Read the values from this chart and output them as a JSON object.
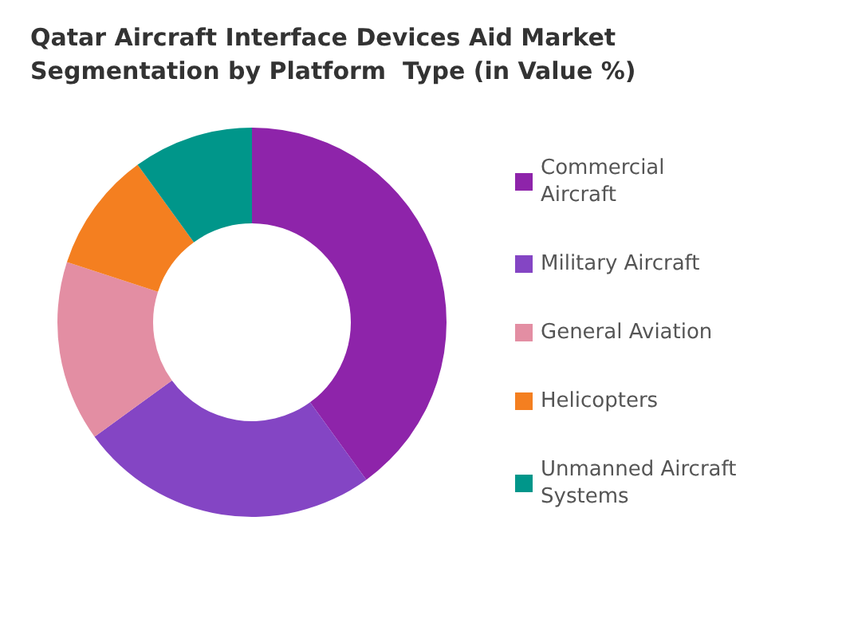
{
  "chart_data": {
    "type": "donut",
    "title": "Qatar Aircraft Interface Devices Aid Market Segmentation by Platform  Type (in Value %)",
    "categories": [
      "Commercial Aircraft",
      "Military Aircraft",
      "General Aviation",
      "Helicopters",
      "Unmanned Aircraft Systems"
    ],
    "values": [
      40,
      25,
      15,
      10,
      10
    ],
    "colors": [
      "#8e24aa",
      "#8445c4",
      "#e38ea3",
      "#f47f20",
      "#00968a"
    ],
    "legend": "right"
  }
}
